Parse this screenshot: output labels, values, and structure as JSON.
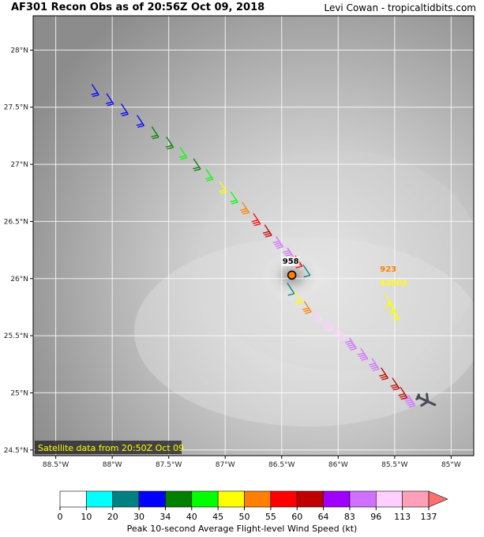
{
  "header": {
    "title": "AF301 Recon Obs as of 20:56Z Oct 09, 2018",
    "credit": "Levi Cowan - tropicaltidbits.com"
  },
  "map": {
    "satellite_note": "Satellite data from 20:50Z Oct 09",
    "lat_ticks": [
      {
        "value": 28.0,
        "label": "28°N"
      },
      {
        "value": 27.5,
        "label": "27.5°N"
      },
      {
        "value": 27.0,
        "label": "27°N"
      },
      {
        "value": 26.5,
        "label": "26.5°N"
      },
      {
        "value": 26.0,
        "label": "26°N"
      },
      {
        "value": 25.5,
        "label": "25.5°N"
      },
      {
        "value": 25.0,
        "label": "25°N"
      },
      {
        "value": 24.5,
        "label": "24.5°N"
      }
    ],
    "lon_ticks": [
      {
        "value": -88.5,
        "label": "88.5°W"
      },
      {
        "value": -88.0,
        "label": "88°W"
      },
      {
        "value": -87.5,
        "label": "87.5°W"
      },
      {
        "value": -87.0,
        "label": "87°W"
      },
      {
        "value": -86.5,
        "label": "86.5°W"
      },
      {
        "value": -86.0,
        "label": "86°W"
      },
      {
        "value": -85.5,
        "label": "85.5°W"
      },
      {
        "value": -85.0,
        "label": "85°W"
      }
    ],
    "lon_range": [
      -88.7,
      -84.8
    ],
    "lat_range": [
      24.45,
      28.3
    ],
    "storm_center": {
      "lon": -86.41,
      "lat": 26.03,
      "pressure_label": "958",
      "label_lon": -86.42,
      "label_lat": 26.13
    },
    "buoy": {
      "lon": -85.55,
      "lat": 25.82,
      "pressure_label": "923",
      "id_label": "42003",
      "pressure_color": "#ff7f00",
      "id_color": "#ffff00",
      "label_lon": -85.63,
      "label_lat": 26.06,
      "id_label_lon": -85.63,
      "id_label_lat": 25.94
    },
    "flight_track": [
      {
        "lon": -88.18,
        "lat": 27.7,
        "kt": 30
      },
      {
        "lon": -88.05,
        "lat": 27.62,
        "kt": 30
      },
      {
        "lon": -87.92,
        "lat": 27.53,
        "kt": 32
      },
      {
        "lon": -87.78,
        "lat": 27.43,
        "kt": 31
      },
      {
        "lon": -87.65,
        "lat": 27.33,
        "kt": 35
      },
      {
        "lon": -87.52,
        "lat": 27.24,
        "kt": 36
      },
      {
        "lon": -87.4,
        "lat": 27.15,
        "kt": 41
      },
      {
        "lon": -87.28,
        "lat": 27.05,
        "kt": 38
      },
      {
        "lon": -87.17,
        "lat": 26.96,
        "kt": 44
      },
      {
        "lon": -87.05,
        "lat": 26.85,
        "kt": 47
      },
      {
        "lon": -86.95,
        "lat": 26.76,
        "kt": 43
      },
      {
        "lon": -86.85,
        "lat": 26.67,
        "kt": 52
      },
      {
        "lon": -86.75,
        "lat": 26.57,
        "kt": 58
      },
      {
        "lon": -86.65,
        "lat": 26.47,
        "kt": 62
      },
      {
        "lon": -86.55,
        "lat": 26.37,
        "kt": 85
      },
      {
        "lon": -86.45,
        "lat": 26.27,
        "kt": 90
      },
      {
        "lon": -86.38,
        "lat": 26.2,
        "kt": 57
      },
      {
        "lon": -86.31,
        "lat": 26.12,
        "kt": 25
      },
      {
        "lon": -86.45,
        "lat": 25.96,
        "kt": 22
      },
      {
        "lon": -86.38,
        "lat": 25.88,
        "kt": 45
      },
      {
        "lon": -86.3,
        "lat": 25.8,
        "kt": 52
      },
      {
        "lon": -86.2,
        "lat": 25.72,
        "kt": 100
      },
      {
        "lon": -86.1,
        "lat": 25.64,
        "kt": 105
      },
      {
        "lon": -86.0,
        "lat": 25.56,
        "kt": 98
      },
      {
        "lon": -85.9,
        "lat": 25.48,
        "kt": 90
      },
      {
        "lon": -85.8,
        "lat": 25.39,
        "kt": 88
      },
      {
        "lon": -85.7,
        "lat": 25.3,
        "kt": 85
      },
      {
        "lon": -85.62,
        "lat": 25.22,
        "kt": 62
      },
      {
        "lon": -85.52,
        "lat": 25.13,
        "kt": 61
      },
      {
        "lon": -85.45,
        "lat": 25.05,
        "kt": 60
      },
      {
        "lon": -85.38,
        "lat": 24.98,
        "kt": 90
      }
    ],
    "buoy_barbs": [
      {
        "lon": -85.58,
        "lat": 25.86,
        "kt": 48
      },
      {
        "lon": -85.55,
        "lat": 25.8,
        "kt": 47
      },
      {
        "lon": -85.52,
        "lat": 25.74,
        "kt": 46
      }
    ],
    "plane": {
      "lon": -85.22,
      "lat": 24.93
    }
  },
  "colorbar": {
    "label": "Peak 10-second Average Flight-level Wind Speed (kt)",
    "boundaries": [
      0,
      10,
      20,
      30,
      34,
      40,
      45,
      50,
      55,
      60,
      64,
      83,
      96,
      113,
      137
    ],
    "colors": [
      "#ffffff",
      "#00ffff",
      "#008080",
      "#0000ff",
      "#008000",
      "#00ff00",
      "#ffff00",
      "#ff8000",
      "#ff0000",
      "#c00000",
      "#a000ff",
      "#d070ff",
      "#ffd0ff",
      "#ffa0b8"
    ],
    "extend_color": "#ff7070"
  }
}
